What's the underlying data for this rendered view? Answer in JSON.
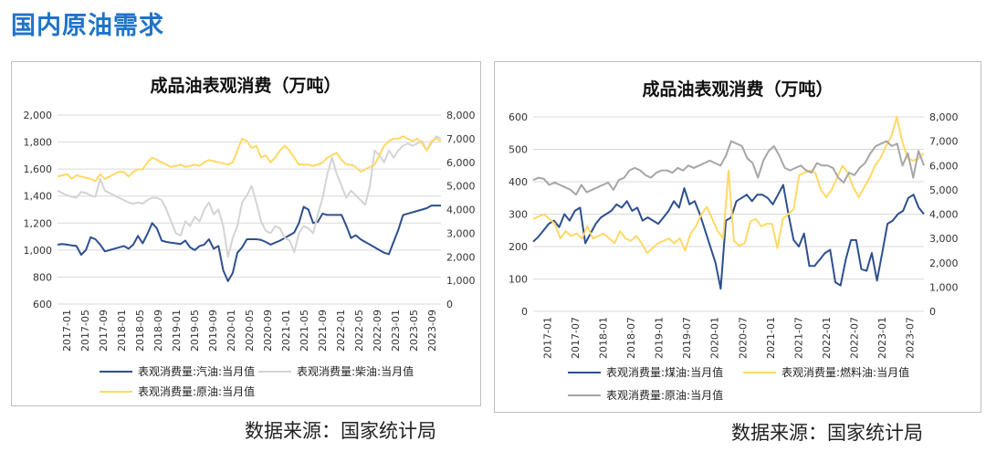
{
  "page": {
    "title": "国内原油需求"
  },
  "colors": {
    "blue": "#2e4f8f",
    "gray": "#d4d4d4",
    "gray_dark": "#a6a6a6",
    "yellow": "#ffd966",
    "axis_text": "#333333",
    "grid": "#d9d9d9"
  },
  "chart_data": [
    {
      "type": "line",
      "title": "成品油表观消费（万吨）",
      "source": "数据来源：国家统计局",
      "x_ticks": [
        "2017-01",
        "2017-05",
        "2017-09",
        "2018-01",
        "2018-05",
        "2018-09",
        "2019-01",
        "2019-05",
        "2019-09",
        "2020-01",
        "2020-05",
        "2020-09",
        "2021-01",
        "2021-05",
        "2021-09",
        "2022-01",
        "2022-05",
        "2022-09",
        "2023-01",
        "2023-05",
        "2023-09"
      ],
      "y_left": {
        "min": 600,
        "max": 2000,
        "step": 200,
        "ticks": [
          "600",
          "800",
          "1,000",
          "1,200",
          "1,400",
          "1,600",
          "1,800",
          "2,000"
        ]
      },
      "y_right": {
        "min": 0,
        "max": 8000,
        "step": 1000,
        "ticks": [
          "0",
          "1,000",
          "2,000",
          "3,000",
          "4,000",
          "5,000",
          "6,000",
          "7,000",
          "8,000"
        ]
      },
      "grid": true,
      "legend_position": "bottom",
      "series": [
        {
          "name": "表观消费量:汽油:当月值",
          "axis": "left",
          "color": "#2e4f8f",
          "values": [
            1040,
            1045,
            1040,
            1035,
            1030,
            965,
            1000,
            1095,
            1080,
            1040,
            990,
            1000,
            1010,
            1020,
            1030,
            1010,
            1040,
            1105,
            1050,
            1120,
            1200,
            1160,
            1070,
            1060,
            1055,
            1050,
            1045,
            1070,
            1020,
            1000,
            1030,
            1040,
            1080,
            1010,
            1030,
            850,
            770,
            830,
            980,
            1020,
            1080,
            1080,
            1080,
            1075,
            1060,
            1040,
            1055,
            1070,
            1090,
            1110,
            1130,
            1200,
            1320,
            1300,
            1200,
            1210,
            1270,
            1260,
            1260,
            1260,
            1260,
            1180,
            1090,
            1110,
            1080,
            1060,
            1040,
            1020,
            1000,
            980,
            970,
            1060,
            1150,
            1260,
            1270,
            1280,
            1290,
            1300,
            1310,
            1330,
            1330,
            1330
          ]
        },
        {
          "name": "表观消费量:柴油:当月值",
          "axis": "right",
          "color": "#d4d4d4",
          "values": [
            4800,
            4700,
            4600,
            4550,
            4500,
            4750,
            4700,
            4600,
            4550,
            5300,
            4800,
            4700,
            4600,
            4500,
            4400,
            4300,
            4250,
            4300,
            4250,
            4400,
            4500,
            4500,
            4400,
            4000,
            3500,
            3000,
            2900,
            3500,
            3300,
            3700,
            3500,
            4000,
            4300,
            3800,
            4000,
            3300,
            2000,
            2800,
            3300,
            4300,
            4600,
            5000,
            4300,
            3500,
            3100,
            3000,
            3300,
            3200,
            2800,
            2700,
            2200,
            3000,
            3300,
            3200,
            3000,
            3800,
            4500,
            5500,
            6200,
            5500,
            5000,
            4500,
            4800,
            4600,
            4400,
            4200,
            5000,
            6500,
            6300,
            6000,
            6500,
            6200,
            6500,
            6700,
            6800,
            6700,
            6800,
            6900,
            6500,
            6800,
            7100,
            7000
          ]
        },
        {
          "name": "表观消费量:原油:当月值",
          "axis": "right",
          "color": "#ffd966",
          "values": [
            5400,
            5450,
            5500,
            5300,
            5450,
            5400,
            5350,
            5300,
            5200,
            5500,
            5300,
            5400,
            5500,
            5600,
            5600,
            5400,
            5600,
            5700,
            5700,
            6000,
            6200,
            6100,
            6000,
            5900,
            5800,
            5850,
            5900,
            5800,
            5850,
            5900,
            5850,
            6000,
            6100,
            6050,
            6000,
            5950,
            5900,
            6000,
            6500,
            7000,
            6900,
            6600,
            6700,
            6200,
            6300,
            6000,
            6200,
            6500,
            6700,
            6500,
            6200,
            5900,
            5900,
            5900,
            5850,
            5900,
            6000,
            6200,
            6300,
            6400,
            6100,
            5900,
            5900,
            5800,
            5600,
            5700,
            5800,
            5900,
            6300,
            6700,
            6900,
            7000,
            7000,
            7100,
            7000,
            6900,
            7000,
            6800,
            6500,
            6900,
            7000,
            6900
          ]
        }
      ]
    },
    {
      "type": "line",
      "title": "成品油表观消费（万吨）",
      "source": "数据来源：国家统计局",
      "x_ticks": [
        "2017-01",
        "2017-07",
        "2018-01",
        "2018-07",
        "2019-01",
        "2019-07",
        "2020-01",
        "2020-07",
        "2021-01",
        "2021-07",
        "2022-01",
        "2022-07",
        "2023-01",
        "2023-07"
      ],
      "y_left": {
        "min": 0,
        "max": 600,
        "step": 100,
        "ticks": [
          "0",
          "100",
          "200",
          "300",
          "400",
          "500",
          "600"
        ]
      },
      "y_right": {
        "min": 0,
        "max": 8000,
        "step": 1000,
        "ticks": [
          "0",
          "1,000",
          "2,000",
          "3,000",
          "4,000",
          "5,000",
          "6,000",
          "7,000",
          "8,000"
        ]
      },
      "grid": true,
      "legend_position": "bottom",
      "series": [
        {
          "name": "表观消费量:煤油:当月值",
          "axis": "left",
          "color": "#2e4f8f",
          "values": [
            215,
            230,
            250,
            270,
            280,
            260,
            300,
            280,
            310,
            320,
            210,
            240,
            270,
            290,
            300,
            310,
            330,
            320,
            340,
            310,
            320,
            280,
            290,
            280,
            270,
            290,
            310,
            340,
            320,
            380,
            330,
            340,
            300,
            250,
            200,
            150,
            70,
            280,
            290,
            340,
            350,
            360,
            340,
            360,
            360,
            350,
            330,
            360,
            390,
            300,
            220,
            200,
            240,
            140,
            140,
            160,
            180,
            190,
            90,
            80,
            160,
            220,
            220,
            130,
            125,
            180,
            95,
            180,
            270,
            280,
            300,
            310,
            350,
            360,
            320,
            300
          ]
        },
        {
          "name": "表观消费量:燃料油:当月值",
          "axis": "right",
          "color": "#ffd966",
          "values": [
            3800,
            3900,
            4000,
            3800,
            3600,
            3000,
            3300,
            3100,
            3200,
            3000,
            3500,
            3000,
            3100,
            3200,
            3000,
            2800,
            3300,
            3000,
            2900,
            3100,
            2800,
            2400,
            2600,
            2800,
            2900,
            3000,
            2800,
            3000,
            2500,
            3200,
            3500,
            4000,
            4300,
            3800,
            3300,
            3000,
            5800,
            2900,
            2700,
            2800,
            3700,
            3800,
            3500,
            3600,
            3600,
            2600,
            3800,
            4000,
            4200,
            5600,
            5700,
            5800,
            5700,
            5000,
            4700,
            5000,
            5500,
            6000,
            5700,
            5100,
            4700,
            5100,
            5500,
            6000,
            6300,
            6800,
            7200,
            8000,
            7000,
            6300,
            6200,
            6300,
            6500
          ]
        },
        {
          "name": "表观消费量:原油:当月值",
          "axis": "right",
          "color": "#a6a6a6",
          "values": [
            5400,
            5500,
            5450,
            5200,
            5300,
            5200,
            5100,
            5000,
            4800,
            5200,
            4900,
            5000,
            5100,
            5200,
            5300,
            5000,
            5400,
            5500,
            5800,
            5900,
            5800,
            5600,
            5500,
            5700,
            5800,
            5800,
            5700,
            5900,
            5800,
            6000,
            5900,
            6000,
            6100,
            6200,
            6100,
            6000,
            6400,
            7000,
            6900,
            6800,
            6300,
            6100,
            5500,
            6200,
            6600,
            6800,
            6400,
            5900,
            5800,
            5900,
            6000,
            5800,
            5700,
            6100,
            6000,
            6000,
            5900,
            5500,
            5300,
            5700,
            5600,
            5900,
            6100,
            6500,
            6800,
            6900,
            7000,
            6800,
            6900,
            6000,
            6500,
            5500,
            6600,
            6000
          ]
        }
      ]
    }
  ]
}
